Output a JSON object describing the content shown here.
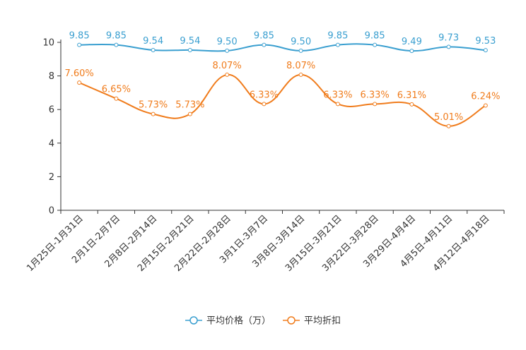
{
  "chart_data": {
    "type": "line",
    "title": "",
    "xlabel": "",
    "ylabel": "",
    "ylim": [
      0,
      10
    ],
    "yticks": [
      "0",
      "2",
      "4",
      "6",
      "8",
      "10"
    ],
    "grid": false,
    "legend_position": "bottom-center",
    "categories": [
      "1月25日-1月31日",
      "2月1日-2月7日",
      "2月8日-2月14日",
      "2月15日-2月21日",
      "2月22日-2月28日",
      "3月1日-3月7日",
      "3月8日-3月14日",
      "3月15日-3月21日",
      "3月22日-3月28日",
      "3月29日-4月4日",
      "4月5日-4月11日",
      "4月12日-4月18日"
    ],
    "series": [
      {
        "name": "平均价格（万）",
        "color": "#3a9fd0",
        "values": [
          9.85,
          9.85,
          9.54,
          9.54,
          9.5,
          9.85,
          9.5,
          9.85,
          9.85,
          9.49,
          9.73,
          9.53
        ],
        "labels": [
          "9.85",
          "9.85",
          "9.54",
          "9.54",
          "9.50",
          "9.85",
          "9.50",
          "9.85",
          "9.85",
          "9.49",
          "9.73",
          "9.53"
        ]
      },
      {
        "name": "平均折扣",
        "color": "#f07c1c",
        "values": [
          7.6,
          6.65,
          5.73,
          5.73,
          8.07,
          6.33,
          8.07,
          6.33,
          6.33,
          6.31,
          5.01,
          6.24
        ],
        "labels": [
          "7.60%",
          "6.65%",
          "5.73%",
          "5.73%",
          "8.07%",
          "6.33%",
          "8.07%",
          "6.33%",
          "6.33%",
          "6.31%",
          "5.01%",
          "6.24%"
        ]
      }
    ]
  }
}
